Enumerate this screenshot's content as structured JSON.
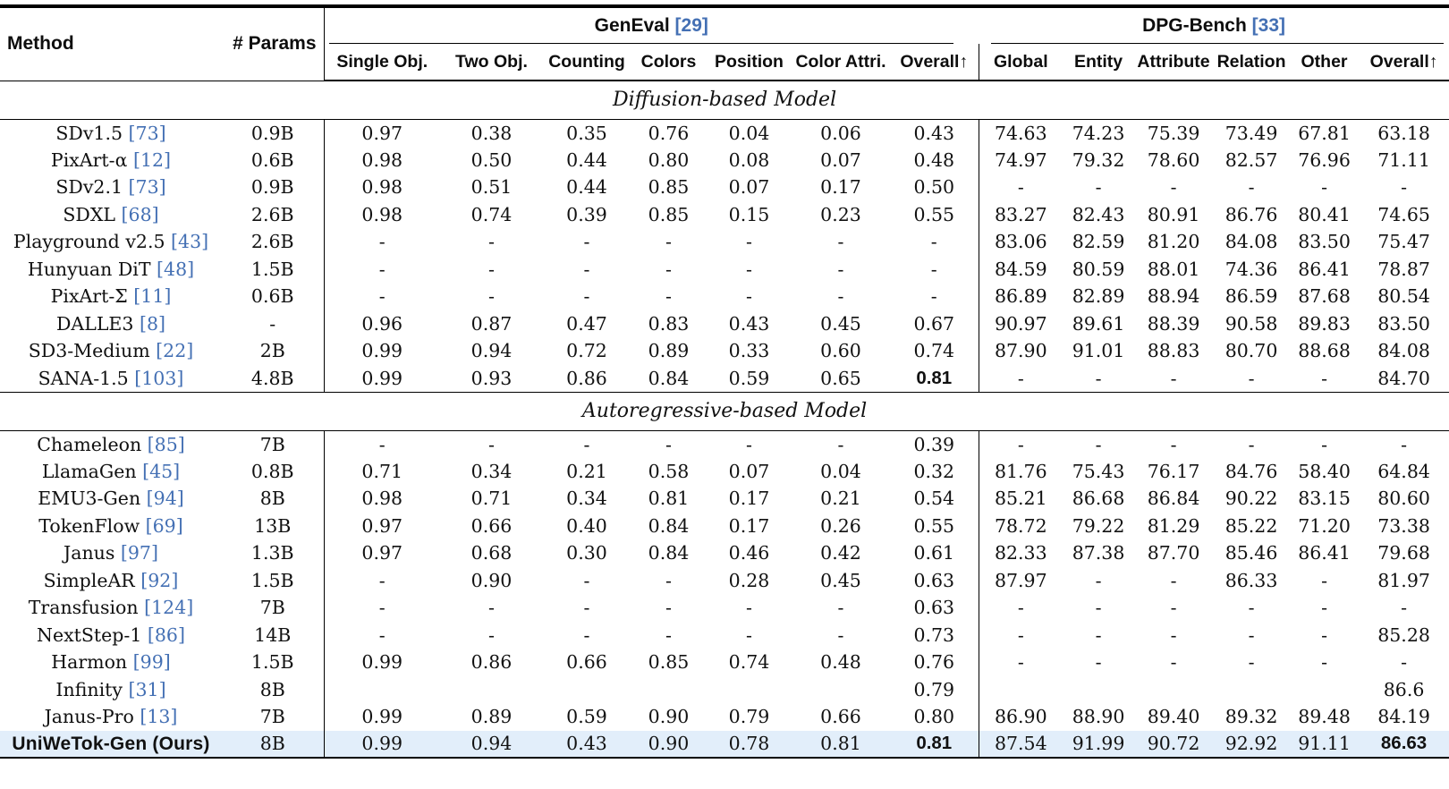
{
  "table": {
    "columns": {
      "method": "Method",
      "params": "# Params",
      "geneval": {
        "label": "GenEval",
        "ref": "[29]",
        "subcols": [
          "Single Obj.",
          "Two Obj.",
          "Counting",
          "Colors",
          "Position",
          "Color Attri.",
          "Overall↑"
        ]
      },
      "dpg": {
        "label": "DPG-Bench",
        "ref": "[33]",
        "subcols": [
          "Global",
          "Entity",
          "Attribute",
          "Relation",
          "Other",
          "Overall↑"
        ]
      }
    },
    "accent_colors": {
      "citation_blue": "#4470b4",
      "highlight_row": "#e2eefa"
    },
    "sections": [
      {
        "title": "Diffusion-based Model",
        "rows": [
          {
            "method": "SDv1.5",
            "ref": "[73]",
            "params": "0.9B",
            "geneval": [
              "0.97",
              "0.38",
              "0.35",
              "0.76",
              "0.04",
              "0.06",
              "0.43"
            ],
            "dpg": [
              "74.63",
              "74.23",
              "75.39",
              "73.49",
              "67.81",
              "63.18"
            ]
          },
          {
            "method": "PixArt-α",
            "ref": "[12]",
            "params": "0.6B",
            "geneval": [
              "0.98",
              "0.50",
              "0.44",
              "0.80",
              "0.08",
              "0.07",
              "0.48"
            ],
            "dpg": [
              "74.97",
              "79.32",
              "78.60",
              "82.57",
              "76.96",
              "71.11"
            ]
          },
          {
            "method": "SDv2.1",
            "ref": "[73]",
            "params": "0.9B",
            "geneval": [
              "0.98",
              "0.51",
              "0.44",
              "0.85",
              "0.07",
              "0.17",
              "0.50"
            ],
            "dpg": [
              "-",
              "-",
              "-",
              "-",
              "-",
              "-"
            ]
          },
          {
            "method": "SDXL",
            "ref": "[68]",
            "params": "2.6B",
            "geneval": [
              "0.98",
              "0.74",
              "0.39",
              "0.85",
              "0.15",
              "0.23",
              "0.55"
            ],
            "dpg": [
              "83.27",
              "82.43",
              "80.91",
              "86.76",
              "80.41",
              "74.65"
            ]
          },
          {
            "method": "Playground v2.5",
            "ref": "[43]",
            "params": "2.6B",
            "geneval": [
              "-",
              "-",
              "-",
              "-",
              "-",
              "-",
              "-"
            ],
            "dpg": [
              "83.06",
              "82.59",
              "81.20",
              "84.08",
              "83.50",
              "75.47"
            ]
          },
          {
            "method": "Hunyuan DiT",
            "ref": "[48]",
            "params": "1.5B",
            "geneval": [
              "-",
              "-",
              "-",
              "-",
              "-",
              "-",
              "-"
            ],
            "dpg": [
              "84.59",
              "80.59",
              "88.01",
              "74.36",
              "86.41",
              "78.87"
            ]
          },
          {
            "method": "PixArt-Σ",
            "ref": "[11]",
            "params": "0.6B",
            "geneval": [
              "-",
              "-",
              "-",
              "-",
              "-",
              "-",
              "-"
            ],
            "dpg": [
              "86.89",
              "82.89",
              "88.94",
              "86.59",
              "87.68",
              "80.54"
            ]
          },
          {
            "method": "DALLE3",
            "ref": "[8]",
            "params": "-",
            "geneval": [
              "0.96",
              "0.87",
              "0.47",
              "0.83",
              "0.43",
              "0.45",
              "0.67"
            ],
            "dpg": [
              "90.97",
              "89.61",
              "88.39",
              "90.58",
              "89.83",
              "83.50"
            ]
          },
          {
            "method": "SD3-Medium",
            "ref": "[22]",
            "params": "2B",
            "geneval": [
              "0.99",
              "0.94",
              "0.72",
              "0.89",
              "0.33",
              "0.60",
              "0.74"
            ],
            "dpg": [
              "87.90",
              "91.01",
              "88.83",
              "80.70",
              "88.68",
              "84.08"
            ]
          },
          {
            "method": "SANA-1.5",
            "ref": "[103]",
            "params": "4.8B",
            "geneval": [
              "0.99",
              "0.93",
              "0.86",
              "0.84",
              "0.59",
              "0.65",
              "0.81"
            ],
            "bold_geneval": [
              6
            ],
            "dpg": [
              "-",
              "-",
              "-",
              "-",
              "-",
              "84.70"
            ]
          }
        ]
      },
      {
        "title": "Autoregressive-based Model",
        "rows": [
          {
            "method": "Chameleon",
            "ref": "[85]",
            "params": "7B",
            "geneval": [
              "-",
              "-",
              "-",
              "-",
              "-",
              "-",
              "0.39"
            ],
            "dpg": [
              "-",
              "-",
              "-",
              "-",
              "-",
              "-"
            ]
          },
          {
            "method": "LlamaGen",
            "ref": "[45]",
            "params": "0.8B",
            "geneval": [
              "0.71",
              "0.34",
              "0.21",
              "0.58",
              "0.07",
              "0.04",
              "0.32"
            ],
            "dpg": [
              "81.76",
              "75.43",
              "76.17",
              "84.76",
              "58.40",
              "64.84"
            ]
          },
          {
            "method": "EMU3-Gen",
            "ref": "[94]",
            "params": "8B",
            "geneval": [
              "0.98",
              "0.71",
              "0.34",
              "0.81",
              "0.17",
              "0.21",
              "0.54"
            ],
            "dpg": [
              "85.21",
              "86.68",
              "86.84",
              "90.22",
              "83.15",
              "80.60"
            ]
          },
          {
            "method": "TokenFlow",
            "ref": "[69]",
            "params": "13B",
            "geneval": [
              "0.97",
              "0.66",
              "0.40",
              "0.84",
              "0.17",
              "0.26",
              "0.55"
            ],
            "dpg": [
              "78.72",
              "79.22",
              "81.29",
              "85.22",
              "71.20",
              "73.38"
            ]
          },
          {
            "method": "Janus",
            "ref": "[97]",
            "params": "1.3B",
            "geneval": [
              "0.97",
              "0.68",
              "0.30",
              "0.84",
              "0.46",
              "0.42",
              "0.61"
            ],
            "dpg": [
              "82.33",
              "87.38",
              "87.70",
              "85.46",
              "86.41",
              "79.68"
            ]
          },
          {
            "method": "SimpleAR",
            "ref": "[92]",
            "params": "1.5B",
            "geneval": [
              "-",
              "0.90",
              "-",
              "-",
              "0.28",
              "0.45",
              "0.63"
            ],
            "dpg": [
              "87.97",
              "-",
              "-",
              "86.33",
              "-",
              "81.97"
            ]
          },
          {
            "method": "Transfusion",
            "ref": "[124]",
            "params": "7B",
            "geneval": [
              "-",
              "-",
              "-",
              "-",
              "-",
              "-",
              "0.63"
            ],
            "dpg": [
              "-",
              "-",
              "-",
              "-",
              "-",
              "-"
            ]
          },
          {
            "method": "NextStep-1",
            "ref": "[86]",
            "params": "14B",
            "geneval": [
              "-",
              "-",
              "-",
              "-",
              "-",
              "-",
              "0.73"
            ],
            "dpg": [
              "-",
              "-",
              "-",
              "-",
              "-",
              "85.28"
            ]
          },
          {
            "method": "Harmon",
            "ref": "[99]",
            "params": "1.5B",
            "geneval": [
              "0.99",
              "0.86",
              "0.66",
              "0.85",
              "0.74",
              "0.48",
              "0.76"
            ],
            "dpg": [
              "-",
              "-",
              "-",
              "-",
              "-",
              "-"
            ]
          },
          {
            "method": "Infinity",
            "ref": "[31]",
            "params": "8B",
            "geneval": [
              "",
              "",
              "",
              "",
              "",
              "",
              "0.79"
            ],
            "dpg": [
              "",
              "",
              "",
              "",
              "",
              "86.6"
            ]
          },
          {
            "method": "Janus-Pro",
            "ref": "[13]",
            "params": "7B",
            "geneval": [
              "0.99",
              "0.89",
              "0.59",
              "0.90",
              "0.79",
              "0.66",
              "0.80"
            ],
            "dpg": [
              "86.90",
              "88.90",
              "89.40",
              "89.32",
              "89.48",
              "84.19"
            ]
          },
          {
            "method": "UniWeTok-Gen (Ours)",
            "ref": "",
            "params": "8B",
            "geneval": [
              "0.99",
              "0.94",
              "0.43",
              "0.90",
              "0.78",
              "0.81",
              "0.81"
            ],
            "bold_geneval": [
              6
            ],
            "dpg": [
              "87.54",
              "91.99",
              "90.72",
              "92.92",
              "91.11",
              "86.63"
            ],
            "bold_dpg": [
              5
            ],
            "highlight": true,
            "ours": true
          }
        ]
      }
    ]
  }
}
